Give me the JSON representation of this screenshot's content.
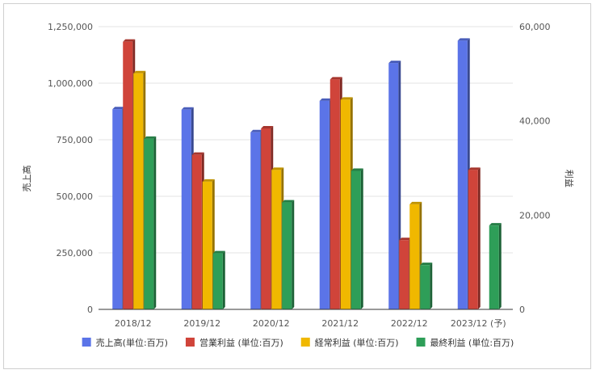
{
  "chart_data": {
    "type": "bar",
    "title": "",
    "categories": [
      "2018/12",
      "2019/12",
      "2020/12",
      "2021/12",
      "2022/12",
      "2023/12 (予)"
    ],
    "left_axis": {
      "label": "売上高",
      "ylim": [
        0,
        1250000
      ],
      "ticks": [
        "0",
        "250,000",
        "500,000",
        "750,000",
        "1,000,000",
        "1,250,000"
      ]
    },
    "right_axis": {
      "label": "利益",
      "ylim": [
        0,
        60000
      ],
      "ticks": [
        "0",
        "20,000",
        "40,000",
        "60,000"
      ]
    },
    "series": [
      {
        "name": "売上高(単位:百万)",
        "axis": "left",
        "color": "#5b74e8",
        "values": [
          885000,
          883000,
          783000,
          922000,
          1089000,
          1188000
        ]
      },
      {
        "name": "営業利益 (単位:百万)",
        "axis": "right",
        "color": "#d0443a",
        "values": [
          56800,
          32800,
          38400,
          48800,
          14700,
          29600
        ]
      },
      {
        "name": "経常利益 (単位:百万)",
        "axis": "right",
        "color": "#f0b800",
        "values": [
          50100,
          27100,
          29600,
          44500,
          22300,
          null
        ]
      },
      {
        "name": "最終利益 (単位:百万)",
        "axis": "right",
        "color": "#2e9e58",
        "values": [
          36200,
          11900,
          22700,
          29400,
          9400,
          17800
        ]
      }
    ],
    "grid": true,
    "legend_position": "bottom"
  }
}
